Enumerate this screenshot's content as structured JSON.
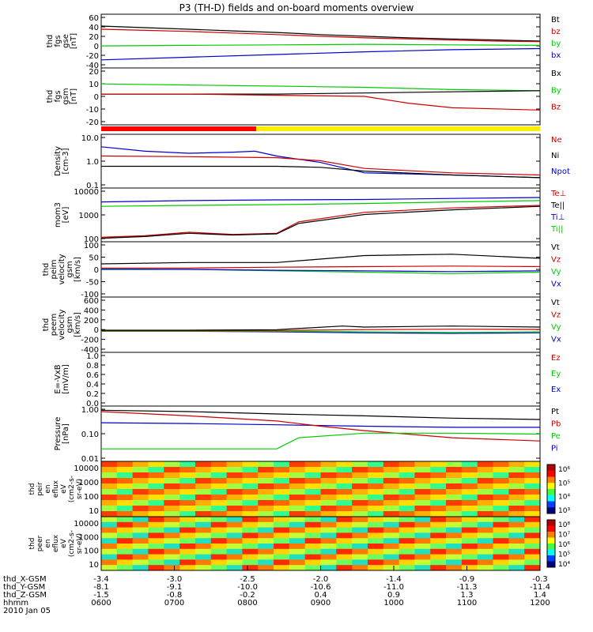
{
  "chart_data": {
    "type": "line",
    "title": "P3 (TH-D) fields and on-board moments overview",
    "panels": [
      {
        "ylabel": [
          "thd",
          "fgs",
          "gse",
          "[nT]"
        ],
        "yticks": [
          "60",
          "40",
          "20",
          "0",
          "-20",
          "-40"
        ],
        "ylim": [
          -40,
          60
        ],
        "legend": [
          {
            "label": "Bt",
            "color": "#000000"
          },
          {
            "label": "bz",
            "color": "#cc0000"
          },
          {
            "label": "by",
            "color": "#00cc00"
          },
          {
            "label": "bx",
            "color": "#0000cc"
          }
        ],
        "series": [
          {
            "color": "#000000",
            "x": [
              0,
              0.1,
              0.2,
              0.3,
              0.4,
              0.5,
              0.6,
              0.7,
              0.8,
              0.9,
              1.0
            ],
            "y": [
              38,
              35,
              32,
              29,
              26,
              22,
              19,
              16,
              14,
              12,
              10
            ]
          },
          {
            "color": "#cc0000",
            "x": [
              0,
              0.1,
              0.2,
              0.3,
              0.4,
              0.5,
              0.6,
              0.7,
              0.8,
              0.9,
              1.0
            ],
            "y": [
              32,
              30,
              28,
              25,
              22,
              19,
              16,
              14,
              12,
              10,
              9
            ]
          },
          {
            "color": "#00cc00",
            "x": [
              0,
              0.2,
              0.4,
              0.6,
              0.8,
              1.0
            ],
            "y": [
              1,
              2,
              3,
              4,
              3,
              2
            ]
          },
          {
            "color": "#0000cc",
            "x": [
              0,
              0.2,
              0.4,
              0.6,
              0.8,
              1.0
            ],
            "y": [
              -25,
              -20,
              -15,
              -10,
              -6,
              -4
            ]
          }
        ]
      },
      {
        "ylabel": [
          "thd",
          "fgs",
          "gsm",
          "[nT]"
        ],
        "yticks": [
          "20",
          "10",
          "0",
          "-10",
          "-20"
        ],
        "ylim": [
          -25,
          25
        ],
        "legend": [
          {
            "label": "Bx",
            "color": "#000000"
          },
          {
            "label": "By",
            "color": "#00cc00"
          },
          {
            "label": "Bz",
            "color": "#cc0000"
          }
        ],
        "series": [
          {
            "color": "#00cc00",
            "x": [
              0,
              0.2,
              0.4,
              0.6,
              0.8,
              1.0
            ],
            "y": [
              11,
              10,
              9,
              8,
              6,
              5
            ]
          },
          {
            "color": "#000000",
            "x": [
              0,
              0.2,
              0.4,
              0.6,
              0.8,
              1.0
            ],
            "y": [
              2,
              2,
              2,
              3,
              4,
              5
            ]
          },
          {
            "color": "#cc0000",
            "x": [
              0,
              0.2,
              0.4,
              0.6,
              0.7,
              0.8,
              1.0
            ],
            "y": [
              2,
              2,
              1,
              0,
              -6,
              -10,
              -12
            ]
          }
        ]
      },
      {
        "ylabel": [
          "Density",
          "[cm-3]"
        ],
        "yticks": [
          "10.0",
          "1.0",
          "0.1"
        ],
        "log": true,
        "ylim": [
          0.1,
          30
        ],
        "legend": [
          {
            "label": "Ne",
            "color": "#cc0000"
          },
          {
            "label": "Ni",
            "color": "#000000"
          },
          {
            "label": "Npot",
            "color": "#0000cc"
          }
        ],
        "series": [
          {
            "color": "#0000cc",
            "x": [
              0,
              0.1,
              0.2,
              0.3,
              0.35,
              0.4,
              0.5,
              0.6,
              0.8,
              1.0
            ],
            "y": [
              8,
              5,
              4,
              4.5,
              5,
              3,
              1.5,
              0.5,
              0.4,
              0.3
            ]
          },
          {
            "color": "#cc0000",
            "x": [
              0,
              0.2,
              0.4,
              0.5,
              0.6,
              0.8,
              1.0
            ],
            "y": [
              3,
              2.8,
              2.5,
              1.8,
              0.8,
              0.5,
              0.4
            ]
          },
          {
            "color": "#000000",
            "x": [
              0,
              0.2,
              0.4,
              0.5,
              0.6,
              0.8,
              1.0
            ],
            "y": [
              1,
              1,
              1,
              0.9,
              0.6,
              0.4,
              0.3
            ]
          }
        ]
      },
      {
        "ylabel": [
          "mom3",
          "[eV]"
        ],
        "yticks": [
          "10000",
          "1000",
          "100"
        ],
        "log": true,
        "ylim": [
          30,
          15000
        ],
        "legend": [
          {
            "label": "Te⊥",
            "color": "#cc0000"
          },
          {
            "label": "Te||",
            "color": "#000000"
          },
          {
            "label": "Ti⊥",
            "color": "#0000cc"
          },
          {
            "label": "Ti||",
            "color": "#00cc00"
          }
        ],
        "series": [
          {
            "color": "#0000cc",
            "x": [
              0,
              0.2,
              0.4,
              0.6,
              0.8,
              1.0
            ],
            "y": [
              3000,
              3500,
              3800,
              4000,
              4500,
              5000
            ]
          },
          {
            "color": "#00cc00",
            "x": [
              0,
              0.2,
              0.4,
              0.6,
              0.8,
              1.0
            ],
            "y": [
              1800,
              2000,
              2200,
              2500,
              3000,
              3500
            ]
          },
          {
            "color": "#cc0000",
            "x": [
              0,
              0.1,
              0.2,
              0.3,
              0.4,
              0.45,
              0.6,
              0.8,
              1.0
            ],
            "y": [
              50,
              60,
              90,
              70,
              80,
              300,
              900,
              1500,
              2000
            ]
          },
          {
            "color": "#000000",
            "x": [
              0,
              0.1,
              0.2,
              0.3,
              0.4,
              0.45,
              0.6,
              0.8,
              1.0
            ],
            "y": [
              45,
              55,
              80,
              65,
              75,
              250,
              700,
              1200,
              1800
            ]
          }
        ]
      },
      {
        "ylabel": [
          "thd",
          "peim",
          "velocity",
          "gsm",
          "[km/s]"
        ],
        "yticks": [
          "100",
          "50",
          "0",
          "-50",
          "-100"
        ],
        "ylim": [
          -100,
          100
        ],
        "legend": [
          {
            "label": "Vt",
            "color": "#000000"
          },
          {
            "label": "Vz",
            "color": "#cc0000"
          },
          {
            "label": "Vy",
            "color": "#00cc00"
          },
          {
            "label": "Vx",
            "color": "#0000cc"
          }
        ],
        "series": [
          {
            "color": "#00cc00",
            "x": [
              0,
              0.2,
              0.4,
              0.6,
              0.8,
              1.0
            ],
            "y": [
              2,
              0,
              -5,
              -10,
              -15,
              -10
            ]
          },
          {
            "color": "#0000cc",
            "x": [
              0,
              0.2,
              0.4,
              0.6,
              0.8,
              1.0
            ],
            "y": [
              0,
              0,
              -3,
              -5,
              -8,
              -5
            ]
          },
          {
            "color": "#cc0000",
            "x": [
              0,
              0.2,
              0.4,
              0.6,
              0.8,
              1.0
            ],
            "y": [
              5,
              5,
              8,
              10,
              12,
              10
            ]
          },
          {
            "color": "#000000",
            "x": [
              0,
              0.2,
              0.4,
              0.6,
              0.8,
              1.0
            ],
            "y": [
              20,
              25,
              25,
              50,
              55,
              40
            ]
          }
        ]
      },
      {
        "ylabel": [
          "thd",
          "peem",
          "velocity",
          "gsm",
          "[km/s]"
        ],
        "yticks": [
          "600",
          "400",
          "200",
          "0",
          "-200",
          "-400"
        ],
        "ylim": [
          -400,
          650
        ],
        "legend": [
          {
            "label": "Vt",
            "color": "#000000"
          },
          {
            "label": "Vz",
            "color": "#cc0000"
          },
          {
            "label": "Vy",
            "color": "#00cc00"
          },
          {
            "label": "Vx",
            "color": "#0000cc"
          }
        ],
        "series": [
          {
            "color": "#0000cc",
            "x": [
              0,
              0.2,
              0.4,
              0.6,
              0.8,
              1.0
            ],
            "y": [
              0,
              0,
              -10,
              -30,
              -40,
              -30
            ]
          },
          {
            "color": "#00cc00",
            "x": [
              0,
              0.2,
              0.4,
              0.6,
              0.8,
              1.0
            ],
            "y": [
              0,
              0,
              0,
              -10,
              -20,
              -10
            ]
          },
          {
            "color": "#cc0000",
            "x": [
              0,
              0.2,
              0.4,
              0.6,
              0.8,
              1.0
            ],
            "y": [
              10,
              10,
              15,
              30,
              40,
              35
            ]
          },
          {
            "color": "#000000",
            "x": [
              0,
              0.2,
              0.4,
              0.55,
              0.6,
              0.8,
              1.0
            ],
            "y": [
              20,
              20,
              30,
              100,
              80,
              100,
              80
            ]
          }
        ]
      },
      {
        "ylabel": [
          "E=-VxB",
          "[mV/m]"
        ],
        "yticks": [
          "1.0",
          "0.8",
          "0.6",
          "0.4",
          "0.2",
          "0.0"
        ],
        "ylim": [
          0,
          1
        ],
        "legend": [
          {
            "label": "Ez",
            "color": "#cc0000"
          },
          {
            "label": "Ey",
            "color": "#00cc00"
          },
          {
            "label": "Ex",
            "color": "#0000cc"
          }
        ],
        "series": []
      },
      {
        "ylabel": [
          "Pressure",
          "[nPa]"
        ],
        "yticks": [
          "1.00",
          "0.10",
          "0.01"
        ],
        "log": true,
        "ylim": [
          0.01,
          1.3
        ],
        "legend": [
          {
            "label": "Pt",
            "color": "#000000"
          },
          {
            "label": "Pb",
            "color": "#cc0000"
          },
          {
            "label": "Pe",
            "color": "#00cc00"
          },
          {
            "label": "Pi",
            "color": "#0000cc"
          }
        ],
        "series": [
          {
            "color": "#000000",
            "x": [
              0,
              0.2,
              0.4,
              0.6,
              0.8,
              1.0
            ],
            "y": [
              0.9,
              0.8,
              0.65,
              0.55,
              0.45,
              0.4
            ]
          },
          {
            "color": "#0000cc",
            "x": [
              0,
              0.2,
              0.4,
              0.6,
              0.8,
              1.0
            ],
            "y": [
              0.3,
              0.28,
              0.25,
              0.22,
              0.2,
              0.2
            ]
          },
          {
            "color": "#cc0000",
            "x": [
              0,
              0.2,
              0.4,
              0.5,
              0.6,
              0.8,
              1.0
            ],
            "y": [
              0.8,
              0.55,
              0.35,
              0.22,
              0.15,
              0.08,
              0.06
            ]
          },
          {
            "color": "#00cc00",
            "x": [
              0,
              0.2,
              0.4,
              0.45,
              0.6,
              0.8,
              1.0
            ],
            "y": [
              0.03,
              0.03,
              0.03,
              0.08,
              0.12,
              0.12,
              0.11
            ]
          }
        ]
      }
    ],
    "spectrograms": [
      {
        "ylabel": [
          "thd",
          "peir",
          "en",
          "eflux",
          "eV",
          "(cm2-s-",
          "sr-eV)"
        ],
        "yticks": [
          "10000",
          "1000",
          "100",
          "10"
        ],
        "colorbar_ticks": [
          "10⁶",
          "10⁵",
          "10⁴",
          "10³"
        ]
      },
      {
        "ylabel": [
          "thd",
          "peer",
          "en",
          "eflux",
          "eV",
          "(cm2-s-",
          "sr-eV)"
        ],
        "yticks": [
          "10000",
          "1000",
          "100",
          "10"
        ],
        "colorbar_ticks": [
          "10⁸",
          "10⁷",
          "10⁶",
          "10⁵",
          "10⁴"
        ]
      }
    ],
    "x_axis": {
      "row_labels": [
        "thd_X-GSM",
        "thd_Y-GSM",
        "thd_Z-GSM",
        "hhmm",
        "2010 Jan 05"
      ],
      "ticks": [
        {
          "x": -3.4,
          "y": -8.1,
          "z": -1.5,
          "time": "0600"
        },
        {
          "x": -3.0,
          "y": -9.1,
          "z": -0.8,
          "time": "0700"
        },
        {
          "x": -2.5,
          "y": -10.0,
          "z": -0.2,
          "time": "0800"
        },
        {
          "x": -2.0,
          "y": -10.6,
          "z": 0.4,
          "time": "0900"
        },
        {
          "x": -1.4,
          "y": -11.0,
          "z": 0.9,
          "time": "1000"
        },
        {
          "x": -0.9,
          "y": -11.3,
          "z": 1.3,
          "time": "1100"
        },
        {
          "x": -0.3,
          "y": -11.4,
          "z": 1.4,
          "time": "1200"
        }
      ]
    }
  }
}
